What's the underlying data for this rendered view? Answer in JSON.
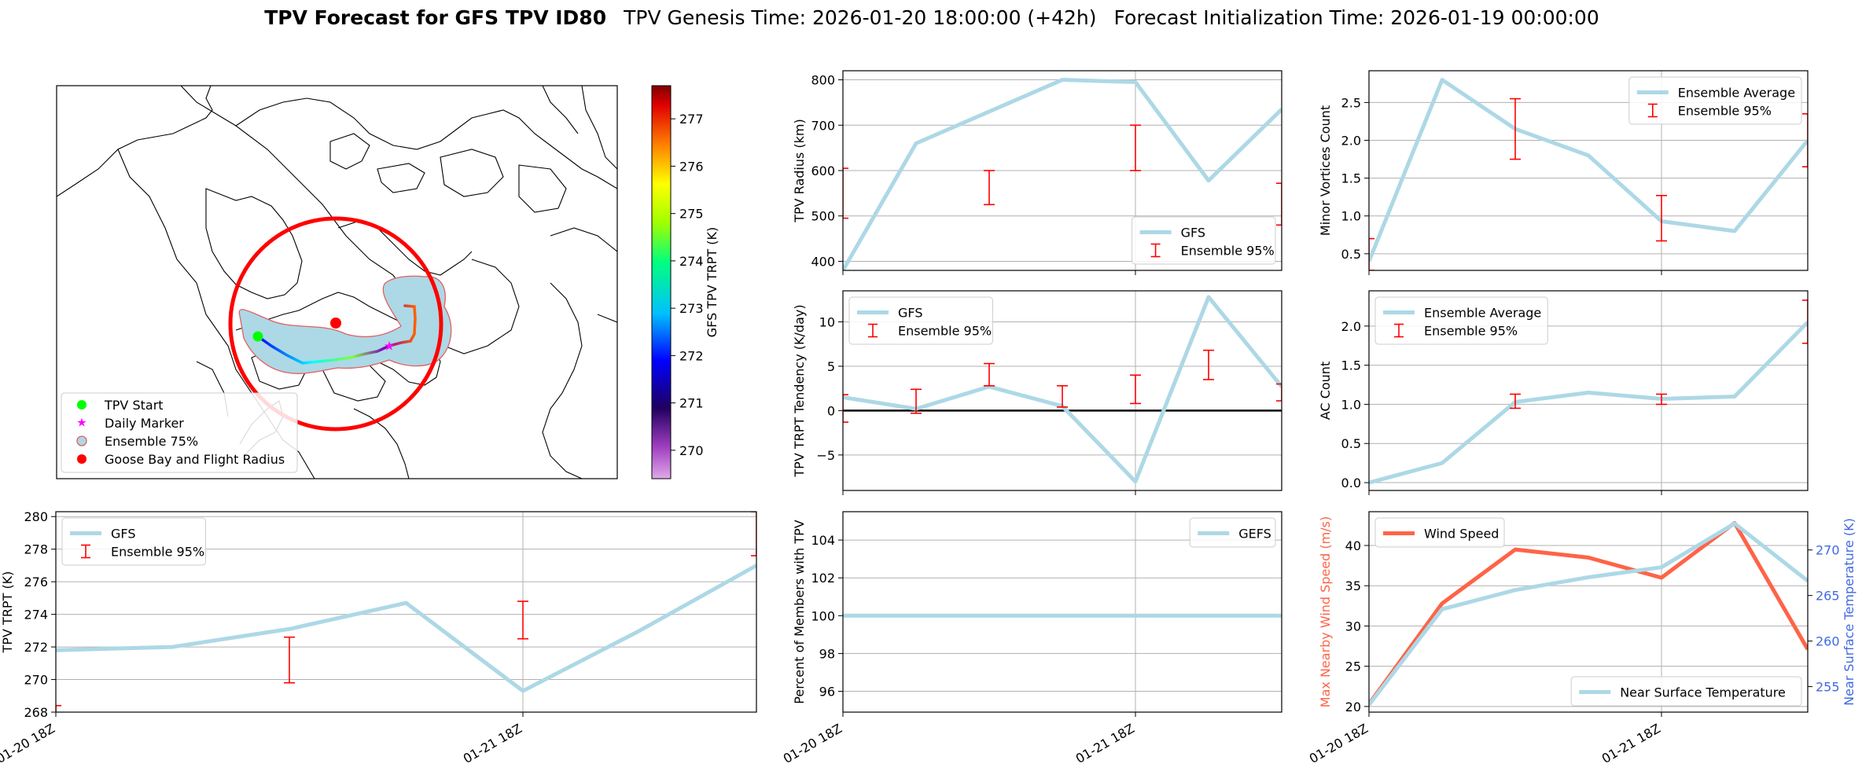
{
  "title": {
    "bold": "TPV Forecast for GFS TPV ID80",
    "genesis": "TPV Genesis Time: 2026-01-20 18:00:00 (+42h)",
    "init": "Forecast Initialization Time: 2026-01-19 00:00:00"
  },
  "colors": {
    "gfs": "#add8e6",
    "ens": "#ff0000",
    "wind": "#ff6347",
    "temp_axis": "#4169e1",
    "tpv_start": "#00ff00",
    "daily_marker": "#ff00ff",
    "goose_bay": "#ff0000"
  },
  "map": {
    "legend": [
      "TPV Start",
      "Daily Marker",
      "Ensemble 75%",
      "Goose Bay and Flight Radius"
    ],
    "colorbar_label": "GFS TPV TRPT (K)",
    "colorbar_ticks": [
      "270",
      "271",
      "272",
      "273",
      "274",
      "275",
      "276",
      "277"
    ],
    "colorbar_range": [
      269.4,
      277.7
    ]
  },
  "chart_data": [
    {
      "id": "radius",
      "type": "line",
      "ylabel": "TPV Radius (km)",
      "ylim": [
        380,
        820
      ],
      "yticks": [
        "400",
        "500",
        "600",
        "700",
        "800"
      ],
      "xlim": [
        0,
        6
      ],
      "x_ticklabels": [],
      "x_tick_positions": [
        0,
        4
      ],
      "series": [
        {
          "name": "GFS",
          "x": [
            0,
            1,
            2,
            3,
            4,
            5,
            6
          ],
          "y": [
            380,
            660,
            730,
            800,
            795,
            578,
            735
          ]
        }
      ],
      "errorbars": {
        "name": "Ensemble 95%",
        "x": [
          0,
          2,
          4,
          6
        ],
        "low": [
          495,
          525,
          600,
          480
        ],
        "high": [
          605,
          600,
          700,
          572
        ]
      },
      "legend": [
        "GFS",
        "Ensemble 95%"
      ],
      "legend_loc": "lower-right"
    },
    {
      "id": "minor",
      "type": "line",
      "ylabel": "Minor Vortices Count",
      "ylim": [
        0.28,
        2.92
      ],
      "yticks": [
        "0.5",
        "1.0",
        "1.5",
        "2.0",
        "2.5"
      ],
      "xlim": [
        0,
        6
      ],
      "x_ticklabels": [],
      "x_tick_positions": [
        0,
        4
      ],
      "series": [
        {
          "name": "Ensemble Average",
          "x": [
            0,
            1,
            2,
            3,
            4,
            5,
            6
          ],
          "y": [
            0.4,
            2.8,
            2.15,
            1.8,
            0.93,
            0.8,
            2.0
          ]
        }
      ],
      "errorbars": {
        "name": "Ensemble 95%",
        "x": [
          0,
          2,
          4,
          6
        ],
        "low": [
          0.28,
          1.75,
          0.67,
          1.65
        ],
        "high": [
          0.7,
          2.55,
          1.27,
          2.35
        ]
      },
      "legend": [
        "Ensemble Average",
        "Ensemble 95%"
      ],
      "legend_loc": "top-right"
    },
    {
      "id": "tendency",
      "type": "line",
      "ylabel": "TPV TRPT Tendency (K/day)",
      "ylim": [
        -9,
        13.5
      ],
      "yticks": [
        "−5",
        "0",
        "5",
        "10"
      ],
      "ytick_values": [
        -5,
        0,
        5,
        10
      ],
      "xlim": [
        0,
        6
      ],
      "x_ticklabels": [],
      "x_tick_positions": [
        0,
        4
      ],
      "zero_line": true,
      "series": [
        {
          "name": "GFS",
          "x": [
            0,
            1,
            2,
            3,
            4,
            5,
            6
          ],
          "y": [
            1.5,
            0.2,
            2.7,
            0.5,
            -8,
            12.8,
            2.7
          ]
        }
      ],
      "errorbars": {
        "name": "Ensemble 95%",
        "x": [
          0,
          1,
          2,
          3,
          4,
          5,
          6
        ],
        "low": [
          -1.3,
          -0.3,
          2.8,
          0.4,
          0.8,
          3.5,
          1.1
        ],
        "high": [
          1.8,
          2.4,
          5.3,
          2.8,
          4.0,
          6.8,
          3.0
        ]
      },
      "legend": [
        "GFS",
        "Ensemble 95%"
      ],
      "legend_loc": "top-left"
    },
    {
      "id": "ac",
      "type": "line",
      "ylabel": "AC Count",
      "ylim": [
        -0.1,
        2.45
      ],
      "yticks": [
        "0.0",
        "0.5",
        "1.0",
        "1.5",
        "2.0"
      ],
      "xlim": [
        0,
        6
      ],
      "x_ticklabels": [],
      "x_tick_positions": [
        0,
        4
      ],
      "series": [
        {
          "name": "Ensemble Average",
          "x": [
            0,
            1,
            2,
            3,
            4,
            5,
            6
          ],
          "y": [
            0.0,
            0.25,
            1.03,
            1.15,
            1.07,
            1.1,
            2.05
          ]
        }
      ],
      "errorbars": {
        "name": "Ensemble 95%",
        "x": [
          2,
          4,
          6
        ],
        "low": [
          0.95,
          1.0,
          1.78
        ],
        "high": [
          1.13,
          1.13,
          2.33
        ]
      },
      "legend": [
        "Ensemble Average",
        "Ensemble 95%"
      ],
      "legend_loc": "top-left"
    },
    {
      "id": "trpt",
      "type": "line",
      "ylabel": "TPV TRPT (K)",
      "ylim": [
        268,
        280.3
      ],
      "yticks": [
        "268",
        "270",
        "272",
        "274",
        "276",
        "278",
        "280"
      ],
      "ytick_values": [
        268,
        270,
        272,
        274,
        276,
        278,
        280
      ],
      "xlim": [
        0,
        6
      ],
      "x_ticklabels": [
        "01-20 18Z",
        "01-21 18Z"
      ],
      "x_tick_positions": [
        0,
        4
      ],
      "series": [
        {
          "name": "GFS",
          "x": [
            0,
            1,
            2,
            3,
            4,
            5,
            6
          ],
          "y": [
            271.8,
            272.0,
            273.1,
            274.7,
            269.3,
            273.0,
            277.0
          ]
        }
      ],
      "errorbars": {
        "name": "Ensemble 95%",
        "x": [
          0,
          2,
          4,
          6
        ],
        "low": [
          267.9,
          269.8,
          272.5,
          277.6
        ],
        "high": [
          268.4,
          272.6,
          274.8,
          280.3
        ]
      },
      "legend": [
        "GFS",
        "Ensemble 95%"
      ],
      "legend_loc": "top-left"
    },
    {
      "id": "members",
      "type": "line",
      "ylabel": "Percent of Members with TPV",
      "ylim": [
        94.9,
        105.5
      ],
      "yticks": [
        "96",
        "98",
        "100",
        "102",
        "104"
      ],
      "ytick_values": [
        96,
        98,
        100,
        102,
        104
      ],
      "xlim": [
        0,
        6
      ],
      "x_ticklabels": [
        "01-20 18Z",
        "01-21 18Z"
      ],
      "x_tick_positions": [
        0,
        4
      ],
      "series": [
        {
          "name": "GEFS",
          "x": [
            0,
            1,
            2,
            3,
            4,
            5,
            6
          ],
          "y": [
            100,
            100,
            100,
            100,
            100,
            100,
            100
          ]
        }
      ],
      "legend": [
        "GEFS"
      ],
      "legend_loc": "top-right"
    },
    {
      "id": "wind",
      "type": "line",
      "ylabel": "Max Nearby Wind Speed (m/s)",
      "ylabel_right": "Near Surface Temperature (K)",
      "ylim": [
        19.3,
        44.2
      ],
      "yticks": [
        "20",
        "25",
        "30",
        "35",
        "40"
      ],
      "ytick_values": [
        20,
        25,
        30,
        35,
        40
      ],
      "ylim_right": [
        252.2,
        274.2
      ],
      "yticks_right": [
        "255",
        "260",
        "265",
        "270"
      ],
      "ytick_values_right": [
        255,
        260,
        265,
        270
      ],
      "xlim": [
        0,
        6
      ],
      "x_ticklabels": [
        "01-20 18Z",
        "01-21 18Z"
      ],
      "x_tick_positions": [
        0,
        4
      ],
      "series": [
        {
          "name": "Wind Speed",
          "x": [
            0,
            1,
            2,
            3,
            4,
            5,
            6
          ],
          "y": [
            20.3,
            32.8,
            39.5,
            38.5,
            36.0,
            42.8,
            27.1
          ]
        },
        {
          "name": "Near Surface Temperature",
          "axis": "right",
          "x": [
            0,
            1,
            2,
            3,
            4,
            5,
            6
          ],
          "y": [
            253.0,
            263.5,
            265.6,
            267.0,
            268.1,
            272.9,
            266.6
          ]
        }
      ],
      "legend": [
        "Wind Speed"
      ],
      "legend_right": [
        "Near Surface Temperature"
      ]
    }
  ]
}
